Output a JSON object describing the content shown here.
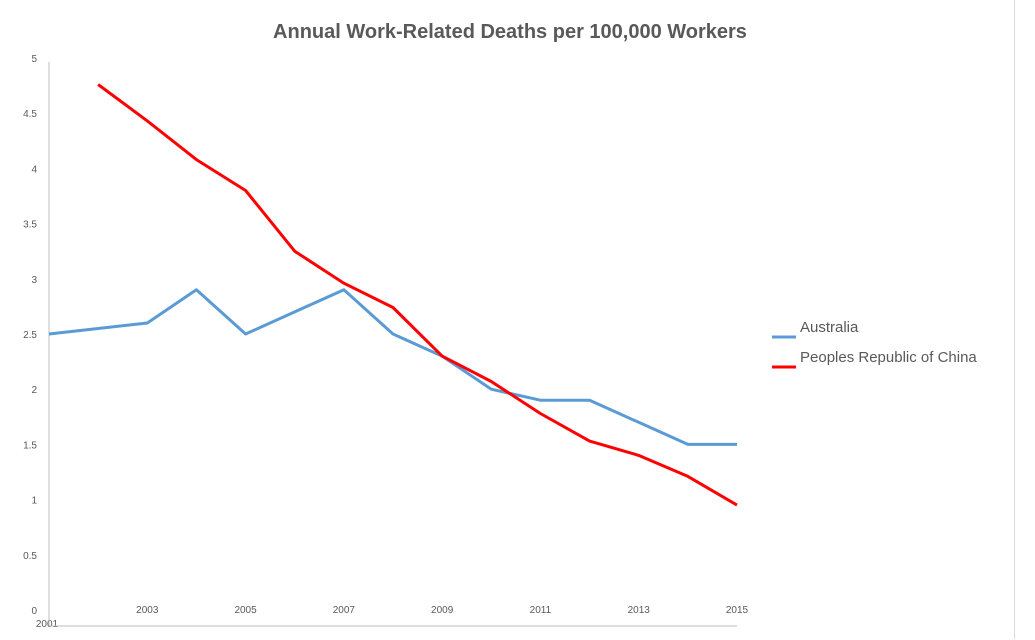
{
  "chart_data": {
    "type": "line",
    "title": "Annual Work-Related Deaths per 100,000 Workers",
    "xlabel": "",
    "ylabel": "",
    "ylim": [
      0,
      5
    ],
    "y_ticks": [
      "0",
      "0.5",
      "1",
      "1.5",
      "2",
      "2.5",
      "3",
      "3.5",
      "4",
      "4.5",
      "5"
    ],
    "x": [
      2001,
      2002,
      2003,
      2004,
      2005,
      2006,
      2007,
      2008,
      2009,
      2010,
      2011,
      2012,
      2013,
      2014,
      2015
    ],
    "x_tick_labels": [
      "2001",
      "2003",
      "2005",
      "2007",
      "2009",
      "2011",
      "2013",
      "2015"
    ],
    "grid": false,
    "legend_position": "right",
    "series": [
      {
        "name": "Australia",
        "color": "#5b9bd5",
        "values": [
          2.5,
          2.55,
          2.6,
          2.9,
          2.5,
          2.7,
          2.9,
          2.5,
          2.3,
          2.0,
          1.9,
          1.9,
          1.7,
          1.5,
          1.5
        ]
      },
      {
        "name": "Peoples Republic of China",
        "color": "#ff0000",
        "values": [
          null,
          4.76,
          4.43,
          4.08,
          3.8,
          3.25,
          2.96,
          2.74,
          2.3,
          2.07,
          1.78,
          1.53,
          1.4,
          1.21,
          0.95
        ]
      }
    ]
  }
}
